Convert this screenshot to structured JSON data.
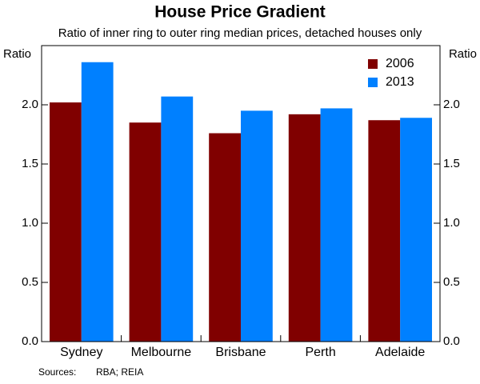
{
  "chart_data": {
    "type": "bar",
    "title": "House Price Gradient",
    "subtitle": "Ratio of inner ring to outer ring median prices, detached houses only",
    "y_label": "Ratio",
    "y2_label": "Ratio",
    "categories": [
      "Sydney",
      "Melbourne",
      "Brisbane",
      "Perth",
      "Adelaide"
    ],
    "series": [
      {
        "name": "2006",
        "color": "#800000",
        "values": [
          2.02,
          1.85,
          1.76,
          1.92,
          1.87
        ]
      },
      {
        "name": "2013",
        "color": "#0080ff",
        "values": [
          2.36,
          2.07,
          1.95,
          1.97,
          1.89
        ]
      }
    ],
    "ylim": [
      0,
      2.5
    ],
    "yticks": [
      {
        "value": 0,
        "label": "0.0"
      },
      0.5,
      {
        "value": 1,
        "label": "1.0"
      },
      1.5,
      {
        "value": 2,
        "label": "2.0"
      }
    ],
    "y2lim": [
      0,
      2.5
    ],
    "y2ticks": [
      {
        "value": 0,
        "label": "0.0"
      },
      0.5,
      {
        "value": 1,
        "label": "1.0"
      },
      1.5,
      {
        "value": 2,
        "label": "2.0"
      }
    ],
    "legend": "top-right",
    "source_label": "Sources:",
    "sources": "RBA; REIA"
  }
}
